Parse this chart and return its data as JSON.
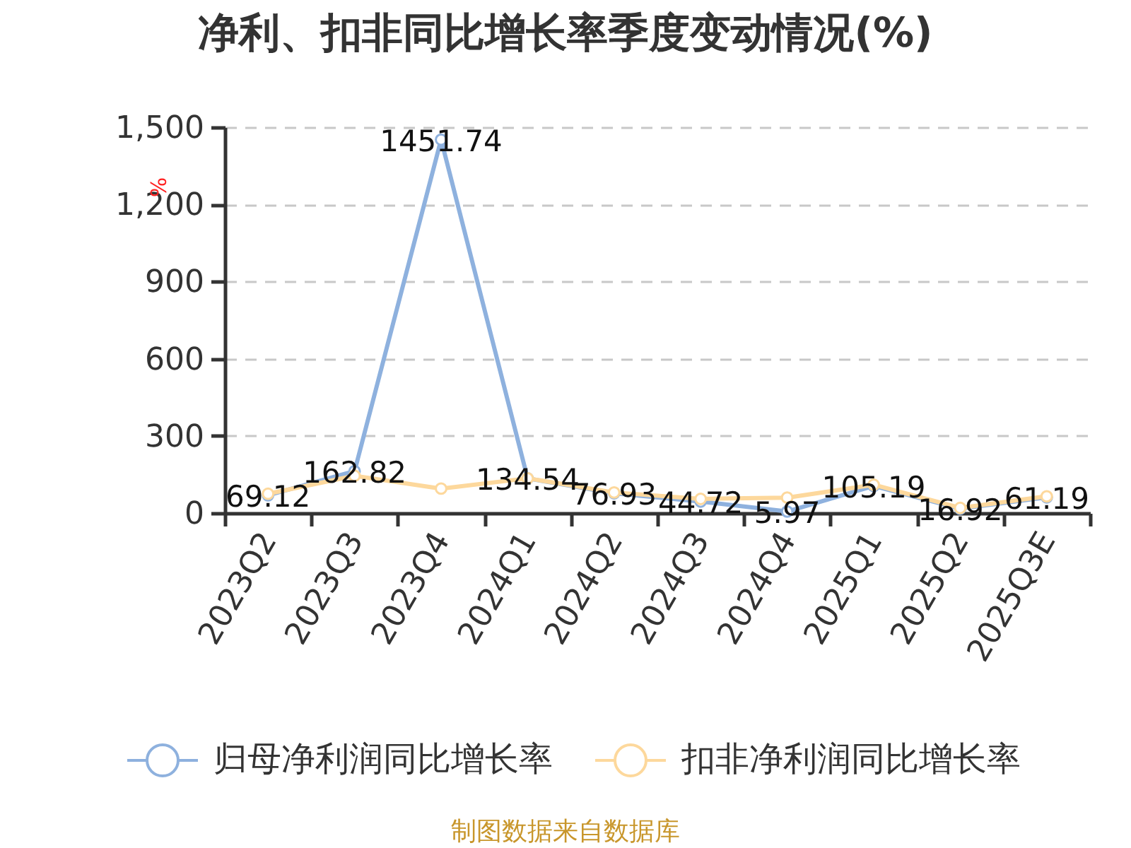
{
  "chart_data": {
    "type": "line",
    "title": "净利、扣非同比增长率季度变动情况(%)",
    "ylabel": "%",
    "categories": [
      "2023Q2",
      "2023Q3",
      "2023Q4",
      "2024Q1",
      "2024Q2",
      "2024Q3",
      "2024Q4",
      "2025Q1",
      "2025Q2",
      "2025Q3E"
    ],
    "series": [
      {
        "name": "归母净利润同比增长率",
        "color": "#8eb1de",
        "values": [
          69.12,
          162.82,
          1451.74,
          134.54,
          76.93,
          44.72,
          5.97,
          105.19,
          16.92,
          61.19
        ],
        "value_labels": [
          "69.12",
          "162.82",
          "1451.74",
          "134.54",
          "76.93",
          "44.72",
          "5.97",
          "105.19",
          "16.92",
          "61.19"
        ]
      },
      {
        "name": "扣非净利润同比增长率",
        "color": "#fdd89c",
        "values": [
          75,
          145,
          95,
          135,
          80,
          55,
          60,
          110,
          20,
          65
        ]
      }
    ],
    "ylim": [
      0,
      1500
    ],
    "yticks": [
      0,
      300,
      600,
      900,
      {
        "value": 1200,
        "label": "1,200"
      },
      {
        "value": 1500,
        "label": "1,500"
      }
    ],
    "grid": "y",
    "legend": "bottom",
    "marker": "circle",
    "line_style": "solid",
    "annotations": [
      "制图数据来自数据库"
    ]
  }
}
